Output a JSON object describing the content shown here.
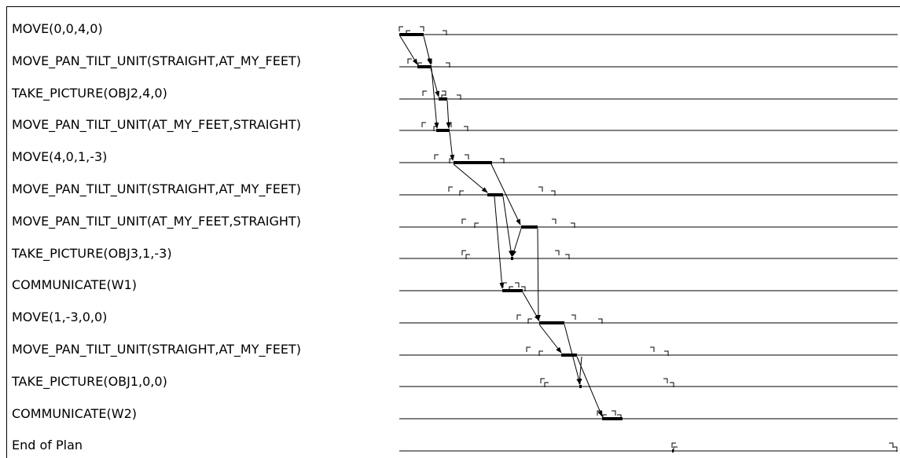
{
  "actions": [
    "MOVE(0,0,4,0)",
    "MOVE_PAN_TILT_UNIT(STRAIGHT,AT_MY_FEET)",
    "TAKE_PICTURE(OBJ2,4,0)",
    "MOVE_PAN_TILT_UNIT(AT_MY_FEET,STRAIGHT)",
    "MOVE(4,0,1,-3)",
    "MOVE_PAN_TILT_UNIT(STRAIGHT,AT_MY_FEET)",
    "MOVE_PAN_TILT_UNIT(AT_MY_FEET,STRAIGHT)",
    "TAKE_PICTURE(OBJ3,1,-3)",
    "COMMUNICATE(W1)",
    "MOVE(1,-3,0,0)",
    "MOVE_PAN_TILT_UNIT(STRAIGHT,AT_MY_FEET)",
    "TAKE_PICTURE(OBJ1,0,0)",
    "COMMUNICATE(W2)",
    "End of Plan"
  ]
}
